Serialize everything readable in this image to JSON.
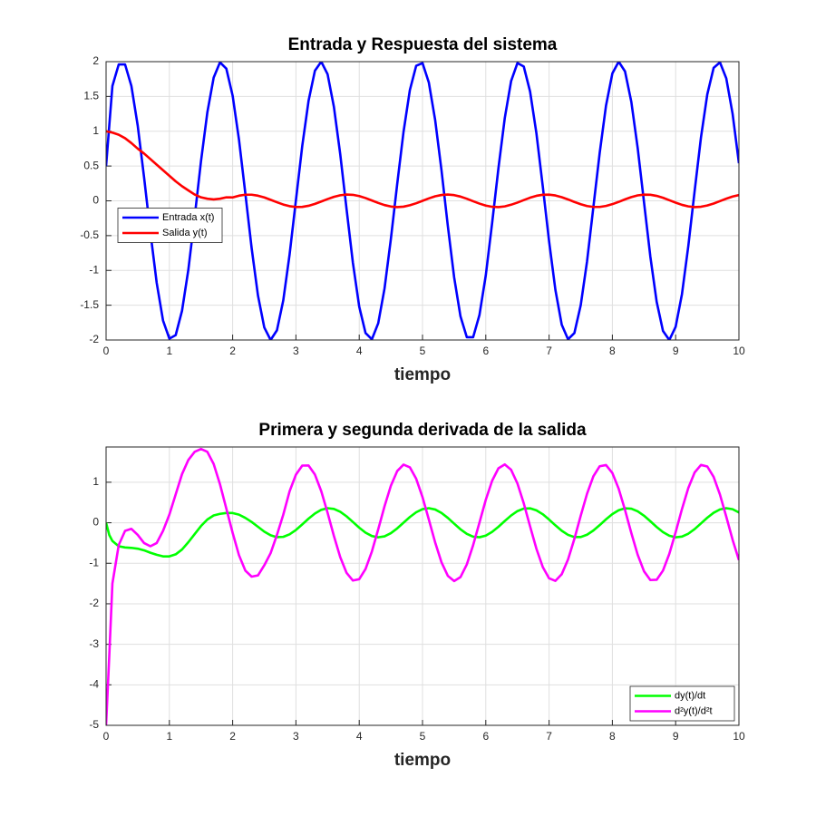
{
  "chart_data": [
    {
      "type": "line",
      "title": "Entrada y Respuesta del sistema",
      "xlabel": "tiempo",
      "x": [
        0,
        0.1,
        0.2,
        0.3,
        0.4,
        0.5,
        0.6,
        0.7,
        0.8,
        0.9,
        1,
        1.1,
        1.2,
        1.3,
        1.4,
        1.5,
        1.6,
        1.7,
        1.8,
        1.9,
        2,
        2.1,
        2.2,
        2.3,
        2.4,
        2.5,
        2.6,
        2.7,
        2.8,
        2.9,
        3,
        3.1,
        3.2,
        3.3,
        3.4,
        3.5,
        3.6,
        3.7,
        3.8,
        3.9,
        4,
        4.1,
        4.2,
        4.3,
        4.4,
        4.5,
        4.6,
        4.7,
        4.8,
        4.9,
        5,
        5.1,
        5.2,
        5.3,
        5.4,
        5.5,
        5.6,
        5.7,
        5.8,
        5.9,
        6,
        6.1,
        6.2,
        6.3,
        6.4,
        6.5,
        6.6,
        6.7,
        6.8,
        6.9,
        7,
        7.1,
        7.2,
        7.3,
        7.4,
        7.5,
        7.6,
        7.7,
        7.8,
        7.9,
        8,
        8.1,
        8.2,
        8.3,
        8.4,
        8.5,
        8.6,
        8.7,
        8.8,
        8.9,
        9,
        9.1,
        9.2,
        9.3,
        9.4,
        9.5,
        9.6,
        9.7,
        9.8,
        9.9,
        10
      ],
      "series": [
        {
          "name": "Entrada x(t)",
          "color": "#0000ff",
          "values": [
            0.5,
            1.65,
            1.96,
            1.96,
            1.65,
            1.08,
            0.34,
            -0.45,
            -1.18,
            -1.72,
            -1.98,
            -1.93,
            -1.58,
            -0.99,
            -0.23,
            0.57,
            1.27,
            1.77,
            1.99,
            1.9,
            1.51,
            0.88,
            0.11,
            -0.68,
            -1.36,
            -1.82,
            -2.0,
            -1.86,
            -1.43,
            -0.77,
            0.01,
            0.79,
            1.44,
            1.87,
            2.0,
            1.82,
            1.35,
            0.67,
            -0.12,
            -0.89,
            -1.52,
            -1.9,
            -1.99,
            -1.76,
            -1.26,
            -0.55,
            0.24,
            0.99,
            1.59,
            1.94,
            1.98,
            1.7,
            1.16,
            0.44,
            -0.36,
            -1.1,
            -1.66,
            -1.96,
            -1.96,
            -1.64,
            -1.07,
            -0.32,
            0.47,
            1.19,
            1.72,
            1.98,
            1.93,
            1.57,
            0.97,
            0.21,
            -0.58,
            -1.28,
            -1.78,
            -1.99,
            -1.9,
            -1.5,
            -0.87,
            -0.09,
            0.69,
            1.37,
            1.83,
            2.0,
            1.86,
            1.42,
            0.76,
            -0.02,
            -0.8,
            -1.45,
            -1.87,
            -2.0,
            -1.81,
            -1.34,
            -0.65,
            0.14,
            0.91,
            1.53,
            1.91,
            1.99,
            1.76,
            1.25,
            0.54
          ]
        },
        {
          "name": "Salida y(t)",
          "color": "#ff0000",
          "values": [
            1.0,
            0.98,
            0.95,
            0.9,
            0.83,
            0.75,
            0.68,
            0.6,
            0.52,
            0.44,
            0.36,
            0.28,
            0.21,
            0.15,
            0.09,
            0.05,
            0.03,
            0.02,
            0.03,
            0.05,
            0.049,
            0.074,
            0.088,
            0.088,
            0.074,
            0.049,
            0.015,
            -0.02,
            -0.053,
            -0.077,
            -0.089,
            -0.087,
            -0.071,
            -0.044,
            -0.01,
            0.025,
            0.057,
            0.08,
            0.09,
            0.086,
            0.068,
            0.04,
            0.005,
            -0.03,
            -0.061,
            -0.082,
            -0.09,
            -0.084,
            -0.064,
            -0.035,
            0,
            0.035,
            0.065,
            0.084,
            0.09,
            0.082,
            0.061,
            0.03,
            -0.006,
            -0.04,
            -0.068,
            -0.086,
            -0.09,
            -0.08,
            -0.056,
            -0.025,
            0.011,
            0.045,
            0.072,
            0.087,
            0.089,
            0.077,
            0.052,
            0.02,
            -0.016,
            -0.049,
            -0.075,
            -0.088,
            -0.088,
            -0.073,
            -0.048,
            -0.015,
            0.021,
            0.054,
            0.078,
            0.089,
            0.087,
            0.071,
            0.044,
            0.009,
            -0.026,
            -0.058,
            -0.08,
            -0.09,
            -0.085,
            -0.067,
            -0.039,
            -0.004,
            0.031,
            0.062,
            0.083
          ]
        }
      ],
      "xlim": [
        0,
        10
      ],
      "ylim": [
        -2,
        2
      ],
      "xticks": [
        0,
        1,
        2,
        3,
        4,
        5,
        6,
        7,
        8,
        9,
        10
      ],
      "yticks": [
        -2,
        -1.5,
        -1,
        -0.5,
        0,
        0.5,
        1,
        1.5,
        2
      ],
      "grid": true,
      "legend": "west"
    },
    {
      "type": "line",
      "title": "Primera y segunda derivada de la salida",
      "xlabel": "tiempo",
      "x": [
        0,
        0.05,
        0.1,
        0.2,
        0.3,
        0.4,
        0.5,
        0.6,
        0.7,
        0.8,
        0.9,
        1,
        1.1,
        1.2,
        1.3,
        1.4,
        1.5,
        1.6,
        1.7,
        1.8,
        1.9,
        2,
        2.1,
        2.2,
        2.3,
        2.4,
        2.5,
        2.6,
        2.7,
        2.8,
        2.9,
        3,
        3.1,
        3.2,
        3.3,
        3.4,
        3.5,
        3.6,
        3.7,
        3.8,
        3.9,
        4,
        4.1,
        4.2,
        4.3,
        4.4,
        4.5,
        4.6,
        4.7,
        4.8,
        4.9,
        5,
        5.1,
        5.2,
        5.3,
        5.4,
        5.5,
        5.6,
        5.7,
        5.8,
        5.9,
        6,
        6.1,
        6.2,
        6.3,
        6.4,
        6.5,
        6.6,
        6.7,
        6.8,
        6.9,
        7,
        7.1,
        7.2,
        7.3,
        7.4,
        7.5,
        7.6,
        7.7,
        7.8,
        7.9,
        8,
        8.1,
        8.2,
        8.3,
        8.4,
        8.5,
        8.6,
        8.7,
        8.8,
        8.9,
        9,
        9.1,
        9.2,
        9.3,
        9.4,
        9.5,
        9.6,
        9.7,
        9.8,
        9.9,
        10
      ],
      "series": [
        {
          "name": "dy(t)/dt",
          "color": "#00ff00",
          "values": [
            0,
            -0.3,
            -0.45,
            -0.58,
            -0.61,
            -0.62,
            -0.64,
            -0.68,
            -0.74,
            -0.79,
            -0.83,
            -0.83,
            -0.78,
            -0.66,
            -0.48,
            -0.28,
            -0.08,
            0.08,
            0.18,
            0.22,
            0.24,
            0.24,
            0.2,
            0.12,
            0.02,
            -0.1,
            -0.22,
            -0.31,
            -0.356,
            -0.348,
            -0.285,
            -0.178,
            -0.041,
            0.102,
            0.228,
            0.319,
            0.359,
            0.342,
            0.272,
            0.158,
            0.02,
            -0.122,
            -0.244,
            -0.327,
            -0.36,
            -0.335,
            -0.258,
            -0.139,
            0.001,
            0.141,
            0.259,
            0.336,
            0.36,
            0.327,
            0.242,
            0.12,
            -0.022,
            -0.161,
            -0.273,
            -0.343,
            -0.358,
            -0.317,
            -0.226,
            -0.099,
            0.043,
            0.179,
            0.287,
            0.349,
            0.356,
            0.307,
            0.21,
            0.079,
            -0.064,
            -0.197,
            -0.299,
            -0.353,
            -0.352,
            -0.295,
            -0.192,
            -0.058,
            0.085,
            0.214,
            0.31,
            0.357,
            0.347,
            0.283,
            0.174,
            0.038,
            -0.105,
            -0.23,
            -0.32,
            -0.359,
            -0.341,
            -0.27,
            -0.156,
            -0.017,
            0.125,
            0.246,
            0.329,
            0.36,
            0.334,
            0.255
          ]
        },
        {
          "name": "d²y(t)/d²t",
          "color": "#ff00ff",
          "values": [
            -5,
            -3.3,
            -1.5,
            -0.55,
            -0.2,
            -0.15,
            -0.3,
            -0.5,
            -0.58,
            -0.5,
            -0.2,
            0.2,
            0.7,
            1.2,
            1.55,
            1.75,
            1.82,
            1.75,
            1.45,
            0.95,
            0.35,
            -0.25,
            -0.8,
            -1.18,
            -1.33,
            -1.3,
            -1.05,
            -0.75,
            -0.3,
            0.2,
            0.777,
            1.188,
            1.411,
            1.412,
            1.189,
            0.779,
            0.246,
            -0.326,
            -0.848,
            -1.237,
            -1.426,
            -1.393,
            -1.14,
            -0.71,
            -0.163,
            0.407,
            0.913,
            1.275,
            1.435,
            1.369,
            1.086,
            0.632,
            0.079,
            -0.487,
            -0.976,
            -1.31,
            -1.439,
            -1.342,
            -1.03,
            -0.554,
            0.005,
            0.566,
            1.036,
            1.344,
            1.439,
            1.307,
            0.969,
            0.479,
            -0.089,
            -0.642,
            -1.092,
            -1.371,
            -1.434,
            -1.27,
            -0.904,
            -0.397,
            0.173,
            0.716,
            1.146,
            1.395,
            1.424,
            1.228,
            0.839,
            0.316,
            -0.256,
            -0.789,
            -1.197,
            -1.414,
            -1.408,
            -1.18,
            -0.768,
            -0.233,
            0.338,
            0.857,
            1.241,
            1.427,
            1.389,
            1.133,
            0.697,
            0.15,
            -0.42,
            -0.921
          ]
        }
      ],
      "xlim": [
        0,
        10
      ],
      "ylim": [
        -5,
        1.87
      ],
      "xticks": [
        0,
        1,
        2,
        3,
        4,
        5,
        6,
        7,
        8,
        9,
        10
      ],
      "yticks": [
        -5,
        -4,
        -3,
        -2,
        -1,
        0,
        1
      ],
      "grid": true,
      "legend": "southeast"
    }
  ]
}
